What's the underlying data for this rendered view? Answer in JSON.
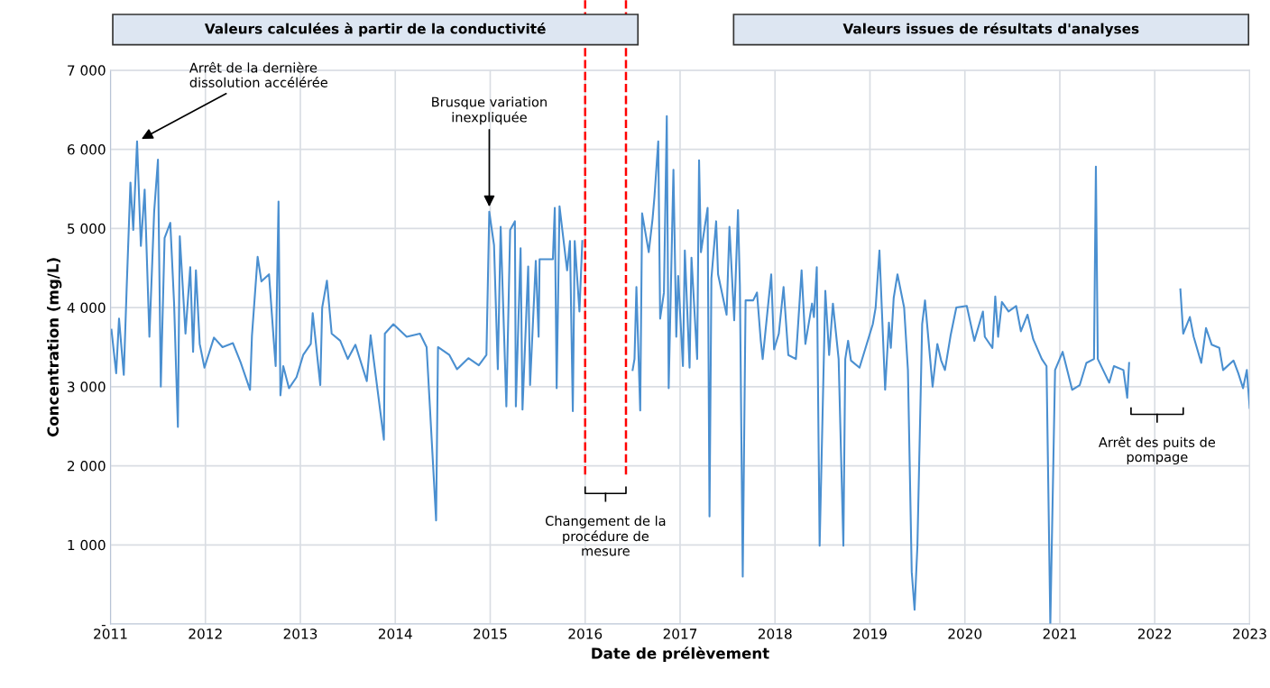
{
  "chart_data": {
    "type": "line",
    "xlabel": "Date de prélèvement",
    "ylabel": "Concentration (mg/L)",
    "xlim": [
      2011,
      2023
    ],
    "xticks": [
      2011,
      2012,
      2013,
      2014,
      2015,
      2016,
      2017,
      2018,
      2019,
      2020,
      2021,
      2022,
      2023
    ],
    "ylim": [
      0,
      7000
    ],
    "yticks": [
      {
        "value": 0,
        "label": "-"
      },
      {
        "value": 1000,
        "label": "1 000"
      },
      {
        "value": 2000,
        "label": "2 000"
      },
      {
        "value": 3000,
        "label": "3 000"
      },
      {
        "value": 4000,
        "label": "4 000"
      },
      {
        "value": 5000,
        "label": "5 000"
      },
      {
        "value": 6000,
        "label": "6 000"
      },
      {
        "value": 7000,
        "label": "7 000"
      }
    ],
    "grid": true,
    "marker": "none",
    "line_style": "solid",
    "annotations": [
      "Valeurs calculées à partir de la conductivité",
      "Valeurs issues de résultats d'analyses",
      "Changement de la\nprocédure de\nmesure",
      "Arrêt des puits de\npompage",
      {
        "text": "Arrêt de la dernière\ndissolution accélérée",
        "x": 2011.28,
        "y": 6100
      },
      {
        "text": "Brusque variation\ninexpliquée",
        "x": 2014.99,
        "y": 5210
      }
    ],
    "ref_lines": [
      {
        "axis": "x",
        "value": 2016.0,
        "color": "#ff0000",
        "line_style": "dashed"
      },
      {
        "axis": "x",
        "value": 2016.43,
        "color": "#ff0000",
        "line_style": "dashed"
      }
    ],
    "series": [
      {
        "color": "#4a8fd0",
        "x": [
          2011.01,
          2011.06,
          2011.09,
          2011.14,
          2011.17,
          2011.21,
          2011.24,
          2011.28,
          2011.32,
          2011.36,
          2011.41,
          2011.46,
          2011.5,
          2011.53,
          2011.57,
          2011.63,
          2011.67,
          2011.71,
          2011.73,
          2011.79,
          2011.84,
          2011.87,
          2011.9,
          2011.94,
          2011.99,
          2012.09,
          2012.18,
          2012.29,
          2012.37,
          2012.47,
          2012.49,
          2012.55,
          2012.59,
          2012.67,
          2012.72,
          2012.74,
          2012.77,
          2012.79,
          2012.82,
          2012.88,
          2012.96,
          2013.03,
          2013.11,
          2013.13,
          2013.21,
          2013.23,
          2013.28,
          2013.33,
          2013.42,
          2013.5,
          2013.58,
          2013.7,
          2013.74,
          2013.88,
          2013.89,
          2013.98,
          2014.12,
          2014.26,
          2014.33,
          2014.43,
          2014.45,
          2014.57,
          2014.65,
          2014.77,
          2014.88,
          2014.96,
          2014.99,
          2015.04,
          2015.08,
          2015.11,
          2015.17,
          2015.21,
          2015.26,
          2015.27,
          2015.32,
          2015.34,
          2015.4,
          2015.42,
          2015.48,
          2015.51,
          2015.52,
          2015.66,
          2015.68,
          2015.7,
          2015.73,
          2015.81,
          2015.84,
          2015.87,
          2015.89,
          2015.94,
          2015.97,
          2016.2,
          2016.5,
          2016.52,
          2016.54,
          2016.58,
          2016.6,
          2016.67,
          2016.71,
          2016.73,
          2016.77,
          2016.79,
          2016.83,
          2016.86,
          2016.88,
          2016.93,
          2016.96,
          2016.98,
          2017.03,
          2017.05,
          2017.1,
          2017.12,
          2017.18,
          2017.2,
          2017.22,
          2017.29,
          2017.31,
          2017.33,
          2017.38,
          2017.4,
          2017.49,
          2017.52,
          2017.57,
          2017.61,
          2017.63,
          2017.66,
          2017.69,
          2017.77,
          2017.81,
          2017.85,
          2017.87,
          2017.96,
          2017.99,
          2018.04,
          2018.09,
          2018.14,
          2018.22,
          2018.28,
          2018.32,
          2018.39,
          2018.41,
          2018.44,
          2018.47,
          2018.53,
          2018.57,
          2018.61,
          2018.67,
          2018.72,
          2018.74,
          2018.77,
          2018.8,
          2018.89,
          2019.03,
          2019.06,
          2019.1,
          2019.16,
          2019.2,
          2019.22,
          2019.25,
          2019.29,
          2019.36,
          2019.4,
          2019.44,
          2019.47,
          2019.5,
          2019.55,
          2019.58,
          2019.66,
          2019.71,
          2019.75,
          2019.79,
          2019.85,
          2019.91,
          2020.02,
          2020.1,
          2020.19,
          2020.21,
          2020.29,
          2020.32,
          2020.35,
          2020.39,
          2020.46,
          2020.54,
          2020.59,
          2020.66,
          2020.72,
          2020.81,
          2020.86,
          2020.9,
          2020.95,
          2021.03,
          2021.13,
          2021.21,
          2021.28,
          2021.36,
          2021.38,
          2021.4,
          2021.52,
          2021.57,
          2021.67,
          2021.71,
          2021.73,
          2022.0,
          2022.27,
          2022.3,
          2022.37,
          2022.41,
          2022.49,
          2022.54,
          2022.6,
          2022.68,
          2022.72,
          2022.83,
          2022.88,
          2022.93,
          2022.97,
          2023.0
        ],
        "values": [
          3720,
          3170,
          3860,
          3150,
          4230,
          5580,
          4980,
          6100,
          4780,
          5490,
          3630,
          5210,
          5870,
          3000,
          4880,
          5070,
          4050,
          2490,
          4900,
          3670,
          4510,
          3440,
          4470,
          3540,
          3240,
          3620,
          3500,
          3550,
          3310,
          2960,
          3640,
          4640,
          4330,
          4420,
          3580,
          3260,
          5340,
          2890,
          3260,
          2980,
          3120,
          3400,
          3540,
          3930,
          3020,
          4000,
          4340,
          3670,
          3580,
          3350,
          3530,
          3070,
          3650,
          2330,
          3670,
          3790,
          3630,
          3670,
          3500,
          1310,
          3500,
          3400,
          3220,
          3360,
          3270,
          3400,
          5210,
          4790,
          3220,
          5020,
          2750,
          4980,
          5090,
          2750,
          4750,
          2710,
          4520,
          3020,
          4590,
          3630,
          4610,
          4610,
          5260,
          2980,
          5280,
          4470,
          4840,
          2690,
          4840,
          3950,
          4840,
          null,
          3210,
          3350,
          4260,
          2700,
          5190,
          4700,
          5120,
          5400,
          6100,
          3860,
          4190,
          6420,
          2980,
          5740,
          3630,
          4400,
          3260,
          4720,
          3240,
          4630,
          3350,
          5860,
          4700,
          5260,
          1360,
          4370,
          5090,
          4420,
          3910,
          5020,
          3840,
          5230,
          4280,
          600,
          4090,
          4090,
          4190,
          3580,
          3350,
          4420,
          3470,
          3670,
          4260,
          3400,
          3350,
          4470,
          3540,
          4050,
          3880,
          4510,
          990,
          4210,
          3400,
          4050,
          3350,
          990,
          3350,
          3580,
          3330,
          3240,
          3790,
          4000,
          4720,
          2960,
          3810,
          3490,
          4120,
          4420,
          4000,
          3210,
          660,
          180,
          990,
          3790,
          4090,
          3000,
          3540,
          3330,
          3210,
          3650,
          4000,
          4020,
          3580,
          3950,
          3630,
          3490,
          4140,
          3630,
          4070,
          3950,
          4020,
          3700,
          3910,
          3600,
          3350,
          3260,
          0,
          3210,
          3440,
          2960,
          3020,
          3300,
          3350,
          5780,
          3350,
          3050,
          3260,
          3210,
          2860,
          3300,
          null,
          4230,
          3670,
          3880,
          3630,
          3300,
          3740,
          3530,
          3490,
          3210,
          3330,
          3170,
          2980,
          3210,
          2730
        ]
      }
    ]
  }
}
